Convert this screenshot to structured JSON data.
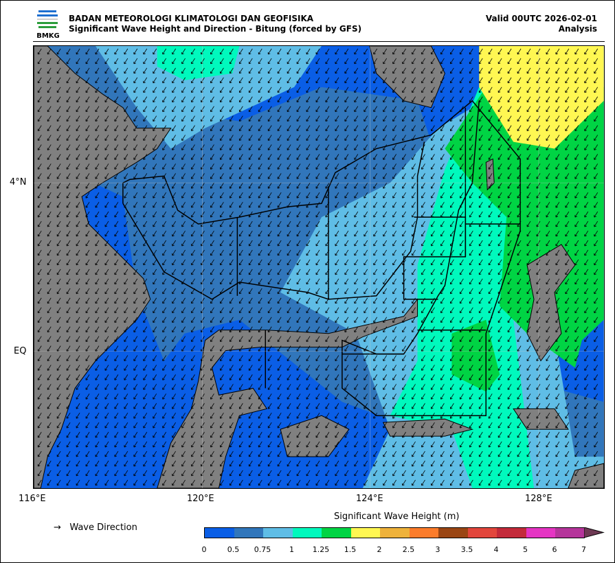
{
  "header": {
    "logo_text": "BMKG",
    "org": "BADAN METEOROLOGI KLIMATOLOGI DAN GEOFISIKA",
    "title": "Significant Wave Height and Direction - Bitung (forced by GFS)",
    "valid": "Valid 00UTC 2026-02-01",
    "type": "Analysis"
  },
  "axes": {
    "lon_ticks": [
      "116°E",
      "120°E",
      "124°E",
      "128°E"
    ],
    "lat_ticks": [
      "4°N",
      "EQ"
    ]
  },
  "legend": {
    "arrow_symbol": "→",
    "arrow_label": "Wave Direction"
  },
  "colorbar": {
    "title": "Significant Wave Height (m)",
    "labels": [
      "0",
      "0.5",
      "0.75",
      "1",
      "1.25",
      "1.5",
      "2",
      "2.5",
      "3",
      "3.5",
      "4",
      "5",
      "6",
      "7"
    ],
    "colors": [
      "#0a5ee6",
      "#3176bb",
      "#5fbde6",
      "#00f9bd",
      "#00d444",
      "#fff752",
      "#eeb23b",
      "#fb7c2b",
      "#9a4614",
      "#e2463c",
      "#c32a3a",
      "#e535c3",
      "#b5359b"
    ],
    "extend_color": "#6e3954"
  },
  "colors": {
    "land": "#808080",
    "water_0": "#0a5ee6"
  },
  "wave_direction": "southwest"
}
